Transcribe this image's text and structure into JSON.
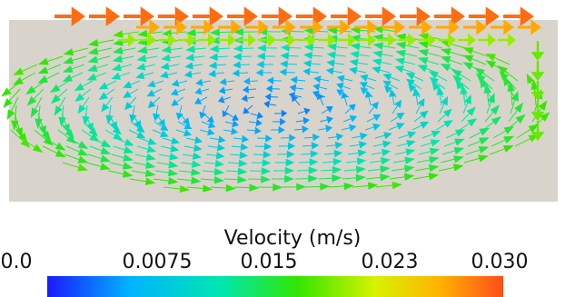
{
  "legend": {
    "title": "Velocity (m/s)",
    "ticks": [
      "0.0",
      "0.0075",
      "0.015",
      "0.023",
      "0.030"
    ],
    "range": [
      0.0,
      0.03
    ],
    "colormap": [
      "#1a1aff",
      "#00b3ff",
      "#00e6b0",
      "#33e600",
      "#d9f200",
      "#ffb300",
      "#ff4d1a"
    ]
  },
  "domain_fill": "#d8d4cb"
}
